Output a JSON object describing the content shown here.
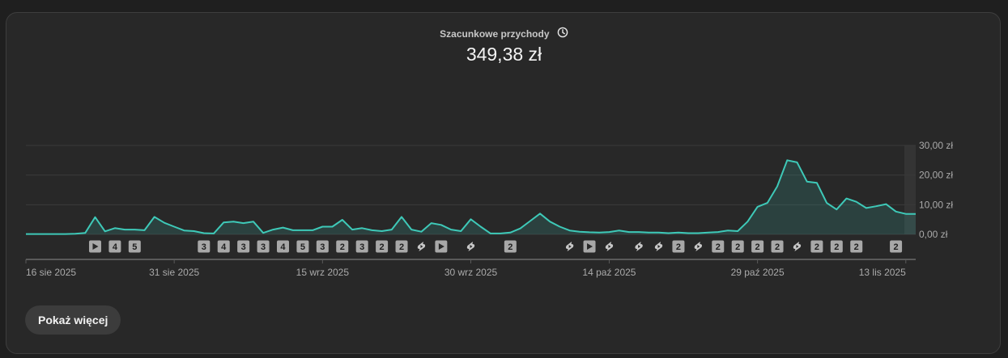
{
  "metric": {
    "label": "Szacunkowe przychody",
    "value": "349,38 zł",
    "info_icon": "clock-icon"
  },
  "buttons": {
    "show_more": "Pokaż więcej"
  },
  "colors": {
    "line": "#3ec9b8",
    "area": "rgba(62,201,184,0.16)",
    "grid": "#3a3a3a",
    "axis": "#5a5a5a",
    "text": "#aaaaaa",
    "marker_bg": "#a8a8a8",
    "marker_text": "#1f1f1f"
  },
  "chart_data": {
    "type": "area",
    "title": "Szacunkowe przychody",
    "x_labels": [
      "16 sie 2025",
      "31 sie 2025",
      "15 wrz 2025",
      "30 wrz 2025",
      "14 paź 2025",
      "29 paź 2025",
      "13 lis 2025"
    ],
    "label_days": [
      0,
      15,
      30,
      45,
      59,
      74,
      89
    ],
    "y_ticks": [
      "30,00 zł",
      "20,00 zł",
      "10,00 zł",
      "0,00 zł"
    ],
    "y_tick_values": [
      30,
      20,
      10,
      0
    ],
    "ylim": [
      0,
      30
    ],
    "grid": true,
    "series": [
      {
        "values": [
          0.1,
          0.1,
          0.1,
          0.1,
          0.1,
          0.2,
          0.5,
          5.8,
          1.0,
          2.1,
          1.6,
          1.6,
          1.4,
          5.9,
          3.9,
          2.6,
          1.3,
          1.1,
          0.4,
          0.3,
          4.0,
          4.3,
          3.8,
          4.3,
          0.5,
          1.6,
          2.3,
          1.4,
          1.4,
          1.4,
          2.6,
          2.6,
          4.9,
          1.6,
          2.1,
          1.4,
          1.1,
          1.6,
          5.9,
          1.6,
          0.9,
          3.8,
          3.2,
          1.6,
          1.1,
          5.1,
          2.6,
          0.3,
          0.3,
          0.6,
          2.0,
          4.5,
          7.0,
          4.3,
          2.6,
          1.3,
          0.9,
          0.7,
          0.6,
          0.8,
          1.3,
          0.8,
          0.8,
          0.6,
          0.6,
          0.4,
          0.6,
          0.4,
          0.4,
          0.6,
          0.8,
          1.3,
          1.1,
          4.3,
          9.3,
          10.6,
          16.2,
          25.0,
          24.3,
          17.8,
          17.4,
          10.6,
          8.4,
          12.1,
          11.0,
          8.9,
          9.5,
          10.2,
          7.7,
          6.9,
          6.9
        ]
      }
    ],
    "markers": [
      {
        "day": 7,
        "kind": "play",
        "label": ""
      },
      {
        "day": 9,
        "kind": "count",
        "label": "4"
      },
      {
        "day": 11,
        "kind": "count",
        "label": "5"
      },
      {
        "day": 18,
        "kind": "count",
        "label": "3"
      },
      {
        "day": 20,
        "kind": "count",
        "label": "4"
      },
      {
        "day": 22,
        "kind": "count",
        "label": "3"
      },
      {
        "day": 24,
        "kind": "count",
        "label": "3"
      },
      {
        "day": 26,
        "kind": "count",
        "label": "4"
      },
      {
        "day": 28,
        "kind": "count",
        "label": "5"
      },
      {
        "day": 30,
        "kind": "count",
        "label": "3"
      },
      {
        "day": 32,
        "kind": "count",
        "label": "2"
      },
      {
        "day": 34,
        "kind": "count",
        "label": "3"
      },
      {
        "day": 36,
        "kind": "count",
        "label": "2"
      },
      {
        "day": 38,
        "kind": "count",
        "label": "2"
      },
      {
        "day": 40,
        "kind": "shorts",
        "label": ""
      },
      {
        "day": 42,
        "kind": "play",
        "label": ""
      },
      {
        "day": 45,
        "kind": "shorts",
        "label": ""
      },
      {
        "day": 49,
        "kind": "count",
        "label": "2"
      },
      {
        "day": 55,
        "kind": "shorts",
        "label": ""
      },
      {
        "day": 57,
        "kind": "play",
        "label": ""
      },
      {
        "day": 59,
        "kind": "shorts",
        "label": ""
      },
      {
        "day": 62,
        "kind": "shorts",
        "label": ""
      },
      {
        "day": 64,
        "kind": "shorts",
        "label": ""
      },
      {
        "day": 66,
        "kind": "count",
        "label": "2"
      },
      {
        "day": 68,
        "kind": "shorts",
        "label": ""
      },
      {
        "day": 70,
        "kind": "count",
        "label": "2"
      },
      {
        "day": 72,
        "kind": "count",
        "label": "2"
      },
      {
        "day": 74,
        "kind": "count",
        "label": "2"
      },
      {
        "day": 76,
        "kind": "count",
        "label": "2"
      },
      {
        "day": 78,
        "kind": "shorts",
        "label": ""
      },
      {
        "day": 80,
        "kind": "count",
        "label": "2"
      },
      {
        "day": 82,
        "kind": "count",
        "label": "2"
      },
      {
        "day": 84,
        "kind": "count",
        "label": "2"
      },
      {
        "day": 88,
        "kind": "count",
        "label": "2"
      }
    ]
  }
}
